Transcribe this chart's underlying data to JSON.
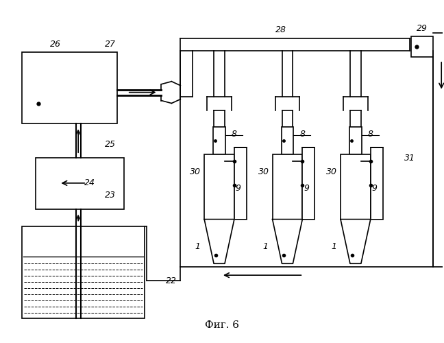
{
  "title": "Фиг. 6",
  "bg_color": "#ffffff",
  "line_color": "#000000",
  "fig_width": 6.48,
  "fig_height": 5.0,
  "dpi": 100
}
